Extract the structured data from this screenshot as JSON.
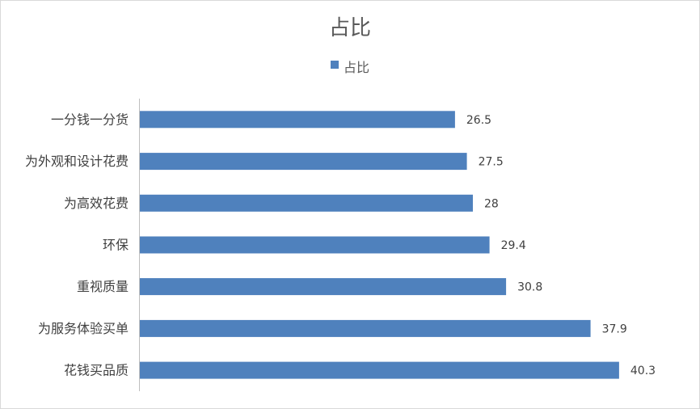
{
  "chart_data": {
    "type": "bar",
    "orientation": "horizontal",
    "title": "占比",
    "categories": [
      "一分钱一分货",
      "为外观和设计花费",
      "为高效花费",
      "环保",
      "重视质量",
      "为服务体验买单",
      "花钱买品质"
    ],
    "series": [
      {
        "name": "占比",
        "values": [
          26.5,
          27.5,
          28,
          29.4,
          30.8,
          37.9,
          40.3
        ],
        "color": "#4f81bd"
      }
    ],
    "value_labels": [
      "26.5",
      "27.5",
      "28",
      "29.4",
      "30.8",
      "37.9",
      "40.3"
    ],
    "xlim": [
      0,
      43.5
    ],
    "grid": false,
    "legend_position": "top"
  }
}
